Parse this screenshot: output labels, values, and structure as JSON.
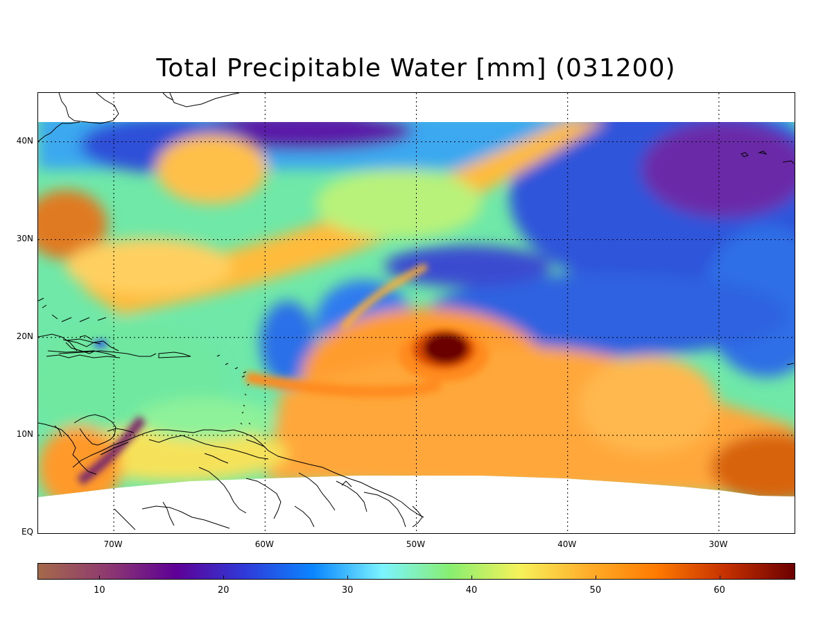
{
  "title": "Total Precipitable Water [mm]  (031200)",
  "map": {
    "lat_labels": [
      "40N",
      "30N",
      "20N",
      "10N",
      "EQ"
    ],
    "lon_labels": [
      "70W",
      "60W",
      "50W",
      "40W",
      "30W"
    ],
    "lat_values": [
      40,
      30,
      20,
      10,
      0
    ],
    "lon_values": [
      -70,
      -60,
      -50,
      -40,
      -30
    ],
    "lon_range": [
      -75,
      -25
    ],
    "lat_range": [
      0,
      45
    ],
    "grid": "dotted"
  },
  "colorbar": {
    "ticks": [
      "10",
      "20",
      "30",
      "40",
      "50",
      "60"
    ],
    "tick_values": [
      10,
      20,
      30,
      40,
      50,
      60
    ],
    "range": [
      5,
      66
    ],
    "colors": [
      "#a5694a",
      "#8e3a70",
      "#5e0096",
      "#2f3ad8",
      "#0a86ff",
      "#7cf3ff",
      "#88ee70",
      "#f6f25a",
      "#ffae2a",
      "#ff7a00",
      "#c53000",
      "#6b0000"
    ]
  }
}
